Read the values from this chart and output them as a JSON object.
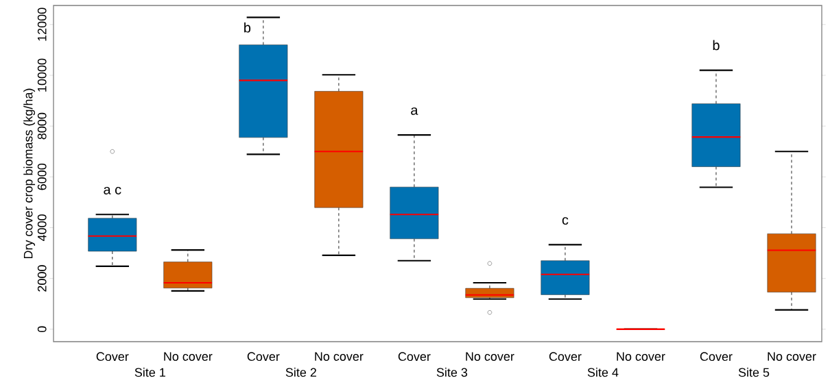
{
  "chart_data": {
    "type": "box",
    "ylabel": "Dry cover crop biomass (kg/ha)",
    "categories": [
      "Cover",
      "No cover",
      "Cover",
      "No cover",
      "Cover",
      "No cover",
      "Cover",
      "No cover",
      "Cover",
      "No cover"
    ],
    "colors": [
      "#0072b2",
      "#d55e00",
      "#0072b2",
      "#d55e00",
      "#0072b2",
      "#d55e00",
      "#0072b2",
      "#d55e00",
      "#0072b2",
      "#d55e00"
    ],
    "boxes": [
      {
        "low": 2480,
        "q1": 3070,
        "median": 3670,
        "q3": 4370,
        "high": 4520,
        "outliers": [
          7000
        ]
      },
      {
        "low": 1510,
        "q1": 1620,
        "median": 1830,
        "q3": 2650,
        "high": 3120
      },
      {
        "low": 6890,
        "q1": 7550,
        "median": 9800,
        "q3": 11200,
        "high": 12280
      },
      {
        "low": 2910,
        "q1": 4790,
        "median": 7000,
        "q3": 9370,
        "high": 10020
      },
      {
        "low": 2700,
        "q1": 3560,
        "median": 4520,
        "q3": 5600,
        "high": 7650
      },
      {
        "low": 1190,
        "q1": 1240,
        "median": 1350,
        "q3": 1610,
        "high": 1830,
        "outliers": [
          2590,
          660
        ]
      },
      {
        "low": 1190,
        "q1": 1360,
        "median": 2160,
        "q3": 2700,
        "high": 3330
      },
      {
        "low": 0,
        "q1": 0,
        "median": 0,
        "q3": 0,
        "high": 0
      },
      {
        "low": 5590,
        "q1": 6400,
        "median": 7570,
        "q3": 8880,
        "high": 10200
      },
      {
        "low": 760,
        "q1": 1460,
        "median": 3110,
        "q3": 3760,
        "high": 7000
      }
    ],
    "ylim": [
      -490,
      12750
    ],
    "yticks": [
      0,
      2000,
      4000,
      6000,
      8000,
      10000,
      12000
    ],
    "grid": false,
    "annotations": [
      "a c",
      "b",
      "a",
      "c",
      "b",
      "Site 1",
      "Site 2",
      "Site 3",
      "Site 4",
      "Site 5"
    ]
  }
}
